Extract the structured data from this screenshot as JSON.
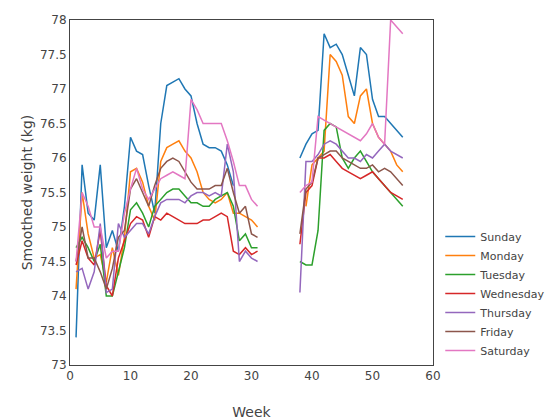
{
  "chart_data": {
    "type": "line",
    "xlabel": "Week",
    "ylabel": "Smoothed weight (kg)",
    "xlim": [
      0,
      60
    ],
    "ylim": [
      73,
      78
    ],
    "xticks": [
      0,
      10,
      20,
      30,
      40,
      50,
      60
    ],
    "yticks": [
      73,
      73.5,
      74,
      74.5,
      75,
      75.5,
      76,
      76.5,
      77,
      77.5,
      78
    ],
    "grid": false,
    "legend": "lower right",
    "x": [
      1,
      2,
      3,
      4,
      5,
      6,
      7,
      8,
      9,
      10,
      11,
      12,
      13,
      14,
      15,
      16,
      17,
      18,
      19,
      20,
      21,
      22,
      23,
      24,
      25,
      26,
      27,
      28,
      29,
      30,
      31,
      32,
      33,
      34,
      35,
      36,
      37,
      38,
      39,
      40,
      41,
      42,
      43,
      44,
      45,
      46,
      47,
      48,
      49,
      50,
      51,
      52,
      53,
      54,
      55
    ],
    "series": [
      {
        "name": "Sunday",
        "values": [
          73.4,
          75.9,
          75.2,
          75.1,
          75.9,
          74.7,
          74.95,
          74.65,
          75.3,
          76.3,
          76.1,
          76.05,
          75.6,
          75.2,
          76.5,
          77.05,
          77.1,
          77.15,
          77.0,
          76.9,
          76.5,
          76.2,
          76.15,
          76.15,
          76.1,
          75.9,
          75.6,
          null,
          null,
          null,
          null,
          null,
          null,
          null,
          null,
          null,
          null,
          76.0,
          76.2,
          76.35,
          76.4,
          77.8,
          77.6,
          77.65,
          77.5,
          77.2,
          76.9,
          77.6,
          77.5,
          76.85,
          76.6,
          76.6,
          76.5,
          76.4,
          76.3
        ]
      },
      {
        "name": "Monday",
        "values": [
          74.1,
          75.5,
          74.9,
          74.55,
          74.6,
          74.2,
          74.7,
          74.3,
          74.85,
          75.8,
          75.85,
          75.65,
          75.3,
          75.1,
          75.95,
          76.15,
          76.2,
          76.25,
          76.1,
          76.0,
          75.8,
          75.5,
          75.4,
          75.35,
          75.4,
          75.5,
          75.2,
          75.2,
          75.15,
          75.1,
          75.0,
          null,
          null,
          null,
          null,
          null,
          null,
          null,
          75.3,
          75.9,
          76.0,
          76.1,
          77.5,
          77.4,
          77.2,
          76.6,
          76.5,
          76.9,
          77.0,
          76.5,
          76.3,
          76.2,
          76.1,
          75.9,
          75.8
        ]
      },
      {
        "name": "Tuesday",
        "values": [
          74.7,
          74.85,
          74.7,
          74.5,
          74.75,
          74.0,
          74.0,
          74.35,
          74.7,
          75.25,
          75.35,
          75.2,
          75.0,
          75.3,
          75.4,
          75.5,
          75.55,
          75.55,
          75.45,
          75.35,
          75.35,
          75.3,
          75.3,
          75.4,
          75.45,
          75.5,
          75.3,
          74.8,
          74.9,
          74.7,
          74.7,
          null,
          null,
          null,
          null,
          null,
          null,
          74.5,
          74.45,
          74.45,
          74.95,
          76.4,
          76.5,
          76.45,
          76.0,
          75.85,
          76.0,
          76.1,
          75.95,
          75.8,
          75.7,
          75.6,
          75.5,
          75.4,
          75.3
        ]
      },
      {
        "name": "Wednesday",
        "values": [
          74.45,
          74.8,
          74.55,
          74.45,
          74.95,
          74.15,
          74.0,
          74.55,
          74.8,
          75.05,
          75.15,
          75.1,
          74.85,
          75.15,
          75.1,
          75.2,
          75.15,
          75.1,
          75.05,
          75.05,
          75.05,
          75.1,
          75.1,
          75.15,
          75.2,
          75.15,
          74.65,
          74.6,
          74.7,
          74.6,
          74.65,
          null,
          null,
          null,
          null,
          null,
          null,
          74.75,
          75.5,
          75.6,
          76.0,
          76.0,
          76.05,
          75.95,
          75.85,
          75.8,
          75.75,
          75.7,
          75.75,
          75.8,
          75.7,
          75.6,
          75.5,
          75.45,
          75.4
        ]
      },
      {
        "name": "Thursday",
        "values": [
          74.35,
          74.4,
          74.1,
          74.35,
          75.05,
          74.05,
          74.1,
          75.05,
          74.85,
          74.95,
          75.05,
          75.05,
          74.9,
          75.15,
          75.35,
          75.4,
          75.4,
          75.4,
          75.35,
          75.45,
          75.5,
          75.5,
          75.45,
          75.5,
          75.45,
          76.2,
          75.8,
          74.5,
          74.65,
          74.55,
          74.5,
          null,
          null,
          null,
          null,
          null,
          null,
          74.05,
          75.95,
          75.95,
          76.05,
          76.2,
          76.25,
          76.2,
          76.1,
          76.0,
          76.0,
          75.95,
          76.05,
          76.0,
          76.1,
          76.2,
          76.1,
          76.05,
          76.0
        ]
      },
      {
        "name": "Friday",
        "values": [
          74.5,
          75.0,
          74.55,
          74.55,
          74.35,
          74.1,
          74.4,
          74.85,
          74.95,
          75.55,
          75.7,
          75.5,
          75.3,
          75.6,
          75.85,
          75.95,
          76.0,
          75.95,
          75.8,
          75.65,
          75.55,
          75.55,
          75.55,
          75.6,
          75.6,
          75.85,
          75.5,
          75.2,
          75.3,
          74.9,
          74.85,
          null,
          null,
          null,
          null,
          null,
          null,
          74.9,
          75.55,
          75.65,
          76.0,
          76.05,
          76.1,
          76.1,
          76.0,
          75.95,
          75.9,
          75.85,
          75.85,
          75.9,
          75.8,
          75.85,
          75.8,
          75.7,
          75.6
        ]
      },
      {
        "name": "Saturday",
        "values": [
          74.5,
          75.5,
          75.3,
          75.0,
          75.0,
          74.55,
          74.65,
          74.65,
          75.2,
          75.55,
          75.85,
          75.55,
          75.4,
          75.55,
          75.7,
          75.75,
          75.8,
          75.75,
          75.7,
          76.85,
          76.7,
          76.5,
          76.5,
          76.5,
          76.5,
          76.25,
          75.95,
          75.6,
          75.6,
          75.4,
          75.3,
          null,
          null,
          null,
          null,
          null,
          null,
          75.5,
          75.6,
          75.65,
          76.6,
          76.55,
          76.5,
          76.45,
          76.4,
          76.35,
          76.3,
          76.25,
          76.35,
          76.5,
          76.3,
          76.2,
          78.0,
          77.9,
          77.8
        ]
      }
    ]
  }
}
